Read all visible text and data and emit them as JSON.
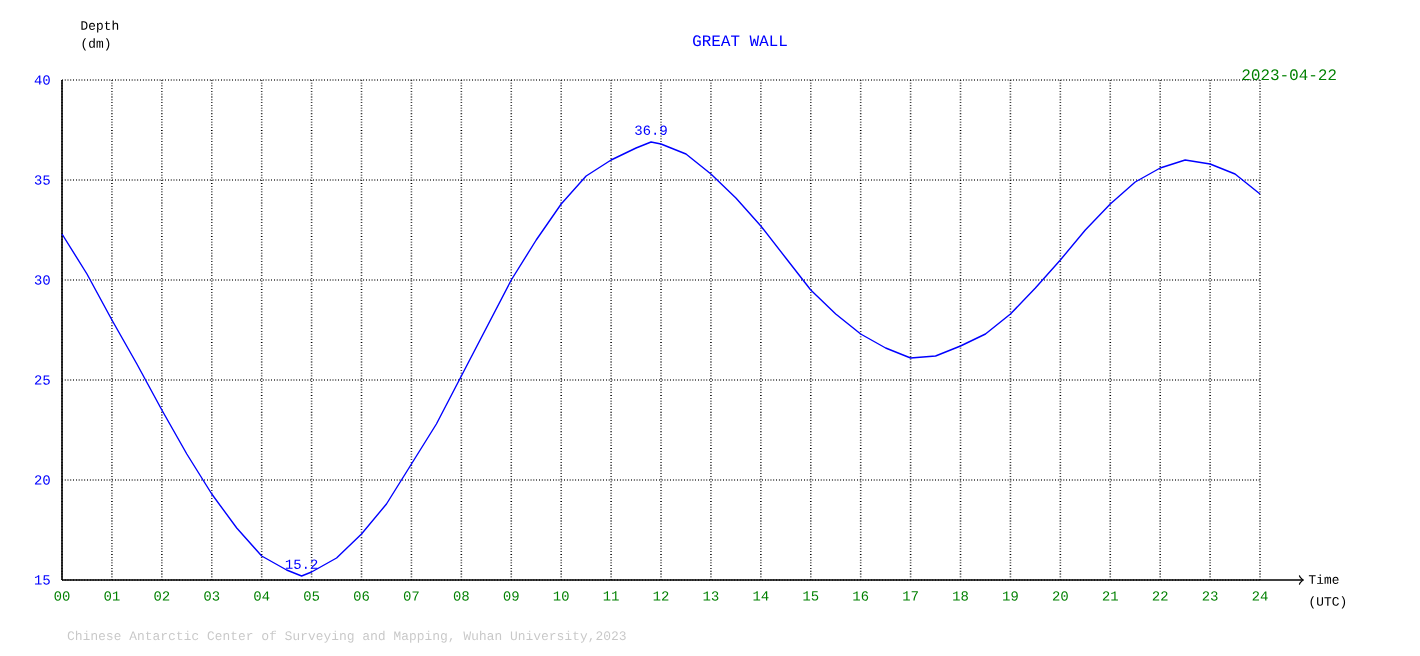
{
  "chart_data": {
    "type": "line",
    "title": "GREAT WALL",
    "xlabel": "Time (UTC)",
    "ylabel": "Depth (dm)",
    "x": [
      0,
      0.5,
      1,
      1.5,
      2,
      2.5,
      3,
      3.5,
      4,
      4.5,
      4.8,
      5,
      5.5,
      6,
      6.5,
      7,
      7.5,
      8,
      8.5,
      9,
      9.5,
      10,
      10.5,
      11,
      11.5,
      11.8,
      12,
      12.5,
      13,
      13.5,
      14,
      14.5,
      15,
      15.5,
      16,
      16.5,
      17,
      17.5,
      18,
      18.5,
      19,
      19.5,
      20,
      20.5,
      21,
      21.5,
      22,
      22.5,
      23,
      23.5,
      24
    ],
    "series": [
      {
        "color": "#0000ff",
        "values": [
          32.3,
          30.3,
          28.0,
          25.8,
          23.5,
          21.3,
          19.3,
          17.6,
          16.2,
          15.5,
          15.2,
          15.4,
          16.1,
          17.3,
          18.8,
          20.8,
          22.8,
          25.2,
          27.6,
          30.0,
          32.0,
          33.8,
          35.2,
          36.0,
          36.6,
          36.9,
          36.8,
          36.3,
          35.3,
          34.1,
          32.7,
          31.1,
          29.5,
          28.3,
          27.3,
          26.6,
          26.1,
          26.2,
          26.7,
          27.3,
          28.3,
          29.6,
          31.0,
          32.5,
          33.8,
          34.9,
          35.6,
          36.0,
          35.8,
          35.3,
          34.3
        ]
      }
    ],
    "xlim": [
      0,
      24
    ],
    "ylim": [
      15,
      40
    ],
    "xticks": [
      {
        "value": 0,
        "label": "00"
      },
      {
        "value": 1,
        "label": "01"
      },
      {
        "value": 2,
        "label": "02"
      },
      {
        "value": 3,
        "label": "03"
      },
      {
        "value": 4,
        "label": "04"
      },
      {
        "value": 5,
        "label": "05"
      },
      {
        "value": 6,
        "label": "06"
      },
      {
        "value": 7,
        "label": "07"
      },
      {
        "value": 8,
        "label": "08"
      },
      {
        "value": 9,
        "label": "09"
      },
      {
        "value": 10,
        "label": "10"
      },
      {
        "value": 11,
        "label": "11"
      },
      {
        "value": 12,
        "label": "12"
      },
      {
        "value": 13,
        "label": "13"
      },
      {
        "value": 14,
        "label": "14"
      },
      {
        "value": 15,
        "label": "15"
      },
      {
        "value": 16,
        "label": "16"
      },
      {
        "value": 17,
        "label": "17"
      },
      {
        "value": 18,
        "label": "18"
      },
      {
        "value": 19,
        "label": "19"
      },
      {
        "value": 20,
        "label": "20"
      },
      {
        "value": 21,
        "label": "21"
      },
      {
        "value": 22,
        "label": "22"
      },
      {
        "value": 23,
        "label": "23"
      },
      {
        "value": 24,
        "label": "24"
      }
    ],
    "yticks": [
      15,
      20,
      25,
      30,
      35,
      40
    ],
    "grid": true,
    "legend": false,
    "marker": "none",
    "line_style": "solid",
    "annotations": [
      {
        "text": "36.9",
        "x": 11.8,
        "y": 36.9
      },
      {
        "text": "15.2",
        "x": 4.8,
        "y": 15.2
      },
      "2023-04-22",
      "Chinese Antarctic Center of Surveying and Mapping, Wuhan University,2023"
    ]
  }
}
